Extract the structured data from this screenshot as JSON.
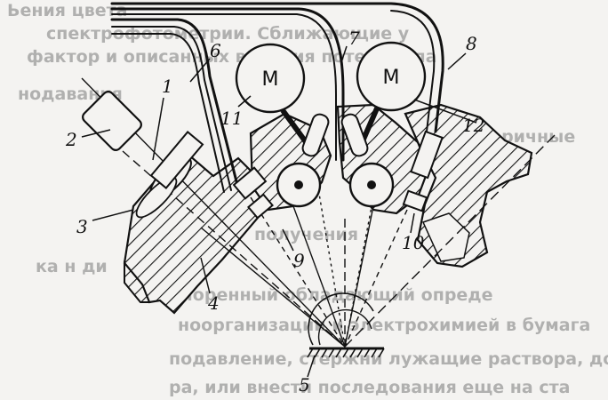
{
  "diagram": {
    "motor_label": "M",
    "labels": {
      "l1": "1",
      "l2": "2",
      "l3": "3",
      "l4": "4",
      "l5": "5",
      "l6": "6",
      "l7": "7",
      "l8": "8",
      "l9": "9",
      "l10": "10",
      "l11": "11",
      "l12": "12"
    }
  },
  "background_text": {
    "line1": "Ьения цвета",
    "line2": "спектрофотометрии. Сближающие у",
    "line3": "фактор и описанных влияния потенциала",
    "line4": "нодавания",
    "line5": "торичные",
    "line6": "получения",
    "line7": "ка н ди",
    "line8": "сморенный обладающий опреде",
    "line9": "ноорганизации и электрохимией в бумага",
    "line10": "подавление, стержни лужащие раствора, дои",
    "line11": "ра, или внести последования еще на ста"
  },
  "colors": {
    "ink": "#111111",
    "paper": "#f4f3f1"
  }
}
